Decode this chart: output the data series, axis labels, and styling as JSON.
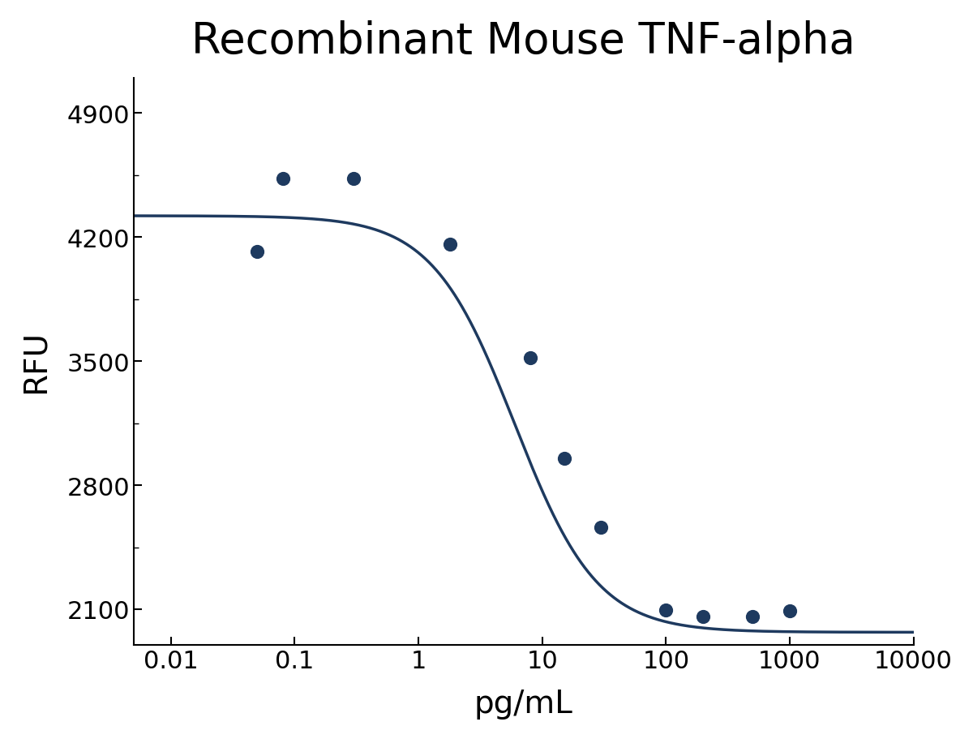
{
  "title": "Recombinant Mouse TNF-alpha",
  "xlabel": "pg/mL",
  "ylabel": "RFU",
  "curve_color": "#1e3a5f",
  "dot_color": "#1e3a5f",
  "background_color": "#ffffff",
  "title_fontsize": 38,
  "label_fontsize": 28,
  "tick_fontsize": 22,
  "data_points_x": [
    0.05,
    0.08,
    0.3,
    1.8,
    8,
    15,
    30,
    100,
    200,
    500,
    1000
  ],
  "data_points_y": [
    4120,
    4530,
    4530,
    4160,
    3520,
    2950,
    2560,
    2095,
    2060,
    2060,
    2090
  ],
  "top_asymptote": 4320,
  "bottom_asymptote": 1970,
  "ec50": 6.0,
  "hill_slope": 1.3,
  "xlim_min_log": -2.3,
  "xlim_max_log": 4.0,
  "ylim": [
    1900,
    5100
  ],
  "yticks": [
    2100,
    2800,
    3500,
    4200,
    4900
  ],
  "xtick_labels": [
    "0.01",
    "0.1",
    "1",
    "10",
    "100",
    "1000",
    "10000"
  ],
  "xtick_values": [
    0.01,
    0.1,
    1,
    10,
    100,
    1000,
    10000
  ],
  "dot_size": 130,
  "line_width": 2.5
}
